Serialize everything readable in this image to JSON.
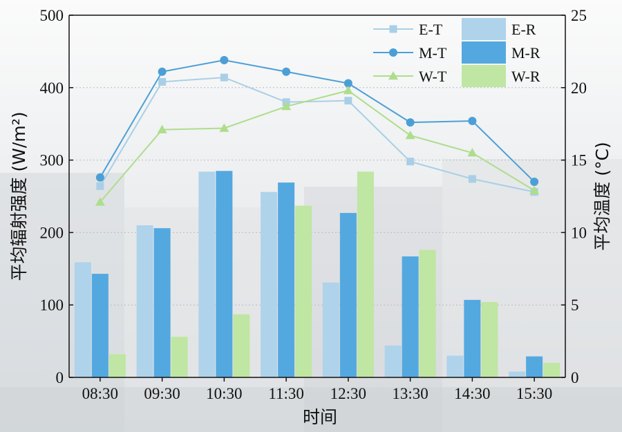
{
  "chart_data": {
    "type": "bar+line",
    "categories": [
      "08:30",
      "09:30",
      "10:30",
      "11:30",
      "12:30",
      "13:30",
      "14:30",
      "15:30"
    ],
    "xlabel": "时间",
    "ylabel_left": "平均辐射强度 (W/m²)",
    "ylabel_right": "平均温度 (°C)",
    "ylim_left": [
      0,
      500
    ],
    "ylim_right": [
      0,
      25
    ],
    "yticks_left": [
      "0",
      "100",
      "200",
      "300",
      "400",
      "500"
    ],
    "yticks_right": [
      "0",
      "5",
      "10",
      "15",
      "20",
      "25"
    ],
    "grid": true,
    "legend_position": "top-right",
    "bar_series": [
      {
        "name": "E-R",
        "color": "#aed3ea",
        "values": [
          159,
          210,
          284,
          256,
          131,
          44,
          30,
          8
        ]
      },
      {
        "name": "M-R",
        "color": "#54a8e0",
        "values": [
          143,
          206,
          285,
          269,
          227,
          167,
          107,
          29
        ]
      },
      {
        "name": "W-R",
        "color": "#bfe6a2",
        "values": [
          32,
          56,
          87,
          237,
          284,
          176,
          104,
          20
        ]
      }
    ],
    "line_series": [
      {
        "name": "E-T",
        "color": "#a9cfe6",
        "marker": "square",
        "values": [
          13.2,
          20.4,
          20.7,
          19.0,
          19.1,
          14.9,
          13.7,
          12.8
        ]
      },
      {
        "name": "M-T",
        "color": "#4c9fd6",
        "marker": "circle",
        "values": [
          13.8,
          21.1,
          21.9,
          21.1,
          20.3,
          17.6,
          17.7,
          13.5
        ]
      },
      {
        "name": "W-T",
        "color": "#aedd8c",
        "marker": "triangle",
        "values": [
          12.1,
          17.1,
          17.2,
          18.7,
          19.8,
          16.7,
          15.5,
          12.9
        ]
      }
    ]
  }
}
